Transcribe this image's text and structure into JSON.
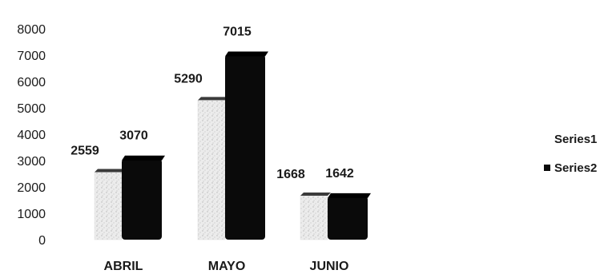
{
  "chart_data": {
    "type": "bar",
    "categories": [
      "ABRIL",
      "MAYO",
      "JUNIO"
    ],
    "series": [
      {
        "name": "Series1",
        "values": [
          2559,
          5290,
          1668
        ],
        "color": "#d9d9d9"
      },
      {
        "name": "Series2",
        "values": [
          3070,
          7015,
          1642
        ],
        "color": "#0a0a0a"
      }
    ],
    "yticks": [
      "0",
      "1000",
      "2000",
      "3000",
      "4000",
      "5000",
      "6000",
      "7000",
      "8000"
    ],
    "ylim": [
      0,
      8000
    ],
    "grid": false,
    "legend_position": "right",
    "title": "",
    "xlabel": "",
    "ylabel": ""
  }
}
